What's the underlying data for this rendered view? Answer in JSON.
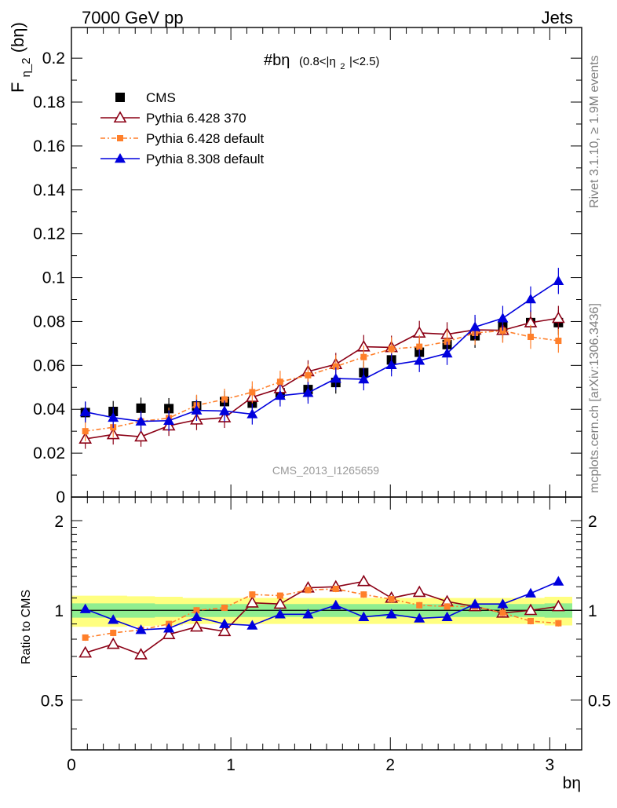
{
  "header": {
    "left": "7000 GeV pp",
    "right": "Jets"
  },
  "side_labels": {
    "rivet": "Rivet 3.1.10, ≥ 1.9M events",
    "mcplots": "mcplots.cern.ch [arXiv:1306.3436]"
  },
  "colors": {
    "cms": "#000000",
    "pythia6_370": "#8b0015",
    "pythia6_default": "#ff7f2a",
    "pythia8_default": "#0000dd",
    "band_inner": "#90ee90",
    "band_outer": "#ffff80"
  },
  "chart_data": [
    {
      "type": "line",
      "panel": "main",
      "title_main": "#bη",
      "title_sub": "(0.8<|η",
      "title_sub_sub": "2",
      "title_sub_end": "|<2.5)",
      "ylabel_main": "F",
      "ylabel_sub": "η_2",
      "ylabel_end": "(bη)",
      "watermark": "CMS_2013_I1265659",
      "xlim": [
        0,
        3.2
      ],
      "ylim": [
        0,
        0.214
      ],
      "yticks": [
        0,
        0.02,
        0.04,
        0.06,
        0.08,
        0.1,
        0.12,
        0.14,
        0.16,
        0.18,
        0.2
      ],
      "ytick_labels": [
        "0",
        "0.02",
        "0.04",
        "0.06",
        "0.08",
        "0.1",
        "0.12",
        "0.14",
        "0.16",
        "0.18",
        "0.2"
      ],
      "legend_position": "top-left",
      "x": [
        0.087,
        0.262,
        0.436,
        0.611,
        0.785,
        0.96,
        1.134,
        1.309,
        1.484,
        1.658,
        1.833,
        2.007,
        2.182,
        2.356,
        2.531,
        2.705,
        2.88,
        3.054
      ],
      "series": [
        {
          "name": "CMS",
          "marker": "square",
          "values": [
            0.0385,
            0.039,
            0.0405,
            0.0403,
            0.0415,
            0.0435,
            0.0428,
            0.0475,
            0.049,
            0.0522,
            0.0567,
            0.0625,
            0.066,
            0.0695,
            0.0735,
            0.078,
            0.0795,
            0.0795
          ]
        },
        {
          "name": "Pythia 6.428 370",
          "marker": "open-triangle",
          "values": [
            0.0265,
            0.0285,
            0.0275,
            0.0325,
            0.0352,
            0.0362,
            0.0455,
            0.0495,
            0.0572,
            0.0605,
            0.0685,
            0.0682,
            0.0748,
            0.0742,
            0.0762,
            0.076,
            0.0795,
            0.0815
          ]
        },
        {
          "name": "Pythia 6.428 default",
          "marker": "dot",
          "values": [
            0.03,
            0.0318,
            0.0345,
            0.036,
            0.0418,
            0.0445,
            0.0478,
            0.0525,
            0.0555,
            0.0595,
            0.0638,
            0.0675,
            0.0685,
            0.0708,
            0.0748,
            0.0758,
            0.073,
            0.0712
          ]
        },
        {
          "name": "Pythia 8.308 default",
          "marker": "triangle",
          "values": [
            0.0388,
            0.0362,
            0.0345,
            0.0348,
            0.0395,
            0.0392,
            0.0378,
            0.0462,
            0.0475,
            0.054,
            0.0537,
            0.0602,
            0.0622,
            0.0655,
            0.0775,
            0.0815,
            0.0902,
            0.0985
          ]
        }
      ]
    },
    {
      "type": "line",
      "panel": "ratio",
      "ylabel": "Ratio to CMS",
      "xlabel": "bη",
      "y_scale": "log",
      "ylim": [
        0.34,
        2.4
      ],
      "yticks": [
        0.5,
        1,
        2
      ],
      "ytick_labels": [
        "0.5",
        "1",
        "2"
      ],
      "xticks": [
        0,
        1,
        2,
        3
      ],
      "xtick_labels": [
        "0",
        "1",
        "2",
        "3"
      ],
      "x": [
        0.087,
        0.262,
        0.436,
        0.611,
        0.785,
        0.96,
        1.134,
        1.309,
        1.484,
        1.658,
        1.833,
        2.007,
        2.182,
        2.356,
        2.531,
        2.705,
        2.88,
        3.054
      ],
      "band_inner": [
        0.055,
        0.055,
        0.055,
        0.05,
        0.05,
        0.05,
        0.05,
        0.05,
        0.05,
        0.05,
        0.05,
        0.05,
        0.05,
        0.05,
        0.05,
        0.05,
        0.05,
        0.055
      ],
      "band_outer": [
        0.12,
        0.12,
        0.115,
        0.11,
        0.1,
        0.1,
        0.1,
        0.1,
        0.1,
        0.1,
        0.1,
        0.1,
        0.1,
        0.1,
        0.1,
        0.1,
        0.1,
        0.11
      ],
      "series": [
        {
          "name": "Pythia 6.428 370",
          "marker": "open-triangle",
          "values": [
            0.72,
            0.77,
            0.71,
            0.83,
            0.88,
            0.85,
            1.06,
            1.05,
            1.19,
            1.2,
            1.25,
            1.1,
            1.15,
            1.07,
            1.03,
            0.98,
            1.0,
            1.03
          ]
        },
        {
          "name": "Pythia 6.428 default",
          "marker": "dot",
          "values": [
            0.81,
            0.84,
            0.86,
            0.9,
            1.0,
            1.02,
            1.13,
            1.12,
            1.17,
            1.18,
            1.13,
            1.09,
            1.04,
            1.03,
            1.03,
            0.98,
            0.92,
            0.905
          ]
        },
        {
          "name": "Pythia 8.308 default",
          "marker": "triangle",
          "values": [
            1.01,
            0.93,
            0.86,
            0.87,
            0.95,
            0.9,
            0.89,
            0.97,
            0.97,
            1.04,
            0.95,
            0.97,
            0.94,
            0.95,
            1.05,
            1.05,
            1.14,
            1.25
          ]
        }
      ]
    }
  ]
}
